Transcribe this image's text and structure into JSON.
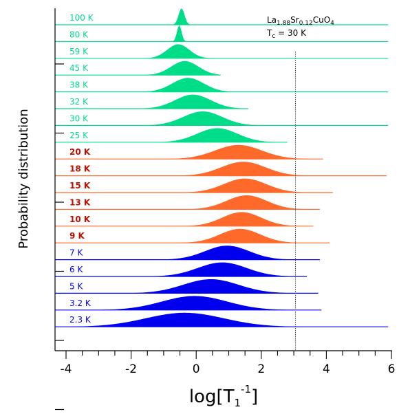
{
  "chart_data": {
    "type": "area",
    "title": "",
    "xlabel": "log[T₁⁻¹]",
    "xlabel_base": "log[T",
    "xlabel_sub": "1",
    "xlabel_sup": "-1",
    "xlabel_close": "]",
    "ylabel": "Probability distribution",
    "xlim": [
      -4.4,
      6.0
    ],
    "xticks": [
      -4,
      -2,
      0,
      2,
      4,
      6
    ],
    "xtick_labels": [
      "-4",
      "-2",
      "0",
      "2",
      "4",
      "6"
    ],
    "grid": false,
    "vline_x": 3.05,
    "annotation": {
      "formula": {
        "la": "La",
        "la_sub": "1.88",
        "sr": "Sr",
        "sr_sub": "0.12",
        "cu": "CuO",
        "cu_sub": "4"
      },
      "tc": {
        "t": "T",
        "t_sub": "c",
        "rest": " = 30 K"
      }
    },
    "colors": {
      "green": "#00dd88",
      "orange": "#ff6a2a",
      "blue": "#0000ee",
      "red_text": "#bb1100"
    },
    "series": [
      {
        "name": "100 K",
        "group": "green",
        "center": -0.45,
        "width": 0.09,
        "height": 1.0,
        "x_end": 5.9,
        "bold": false
      },
      {
        "name": "80 K",
        "group": "green",
        "center": -0.52,
        "width": 0.07,
        "height": 1.0,
        "x_end": 5.9,
        "bold": false
      },
      {
        "name": "59 K",
        "group": "green",
        "center": -0.55,
        "width": 0.34,
        "height": 0.85,
        "x_end": 5.9,
        "bold": false
      },
      {
        "name": "45 K",
        "group": "green",
        "center": -0.35,
        "width": 0.42,
        "height": 0.85,
        "x_end": 0.75,
        "bold": false
      },
      {
        "name": "38 K",
        "group": "green",
        "center": -0.25,
        "width": 0.48,
        "height": 0.85,
        "x_end": 5.9,
        "bold": false
      },
      {
        "name": "32 K",
        "group": "green",
        "center": -0.1,
        "width": 0.55,
        "height": 0.85,
        "x_end": 1.6,
        "bold": false
      },
      {
        "name": "30 K",
        "group": "green",
        "center": 0.2,
        "width": 0.6,
        "height": 0.85,
        "x_end": 5.9,
        "bold": false
      },
      {
        "name": "25 K",
        "group": "green",
        "center": 0.65,
        "width": 0.62,
        "height": 0.85,
        "x_end": 2.8,
        "bold": false
      },
      {
        "name": "20 K",
        "group": "orange",
        "center": 1.3,
        "width": 0.72,
        "height": 0.85,
        "x_end": 3.9,
        "bold": true
      },
      {
        "name": "18 K",
        "group": "orange",
        "center": 1.45,
        "width": 0.68,
        "height": 0.85,
        "x_end": 5.85,
        "bold": true
      },
      {
        "name": "15 K",
        "group": "orange",
        "center": 1.5,
        "width": 0.65,
        "height": 0.85,
        "x_end": 4.2,
        "bold": true
      },
      {
        "name": "13 K",
        "group": "orange",
        "center": 1.55,
        "width": 0.62,
        "height": 0.85,
        "x_end": 3.8,
        "bold": true
      },
      {
        "name": "10 K",
        "group": "orange",
        "center": 1.4,
        "width": 0.6,
        "height": 0.85,
        "x_end": 3.6,
        "bold": true
      },
      {
        "name": "9 K",
        "group": "orange",
        "center": 1.35,
        "width": 0.62,
        "height": 0.85,
        "x_end": 4.1,
        "bold": true
      },
      {
        "name": "7 K",
        "group": "blue",
        "center": 0.95,
        "width": 0.68,
        "height": 0.85,
        "x_end": 3.8,
        "bold": false
      },
      {
        "name": "6 K",
        "group": "blue",
        "center": 0.8,
        "width": 0.75,
        "height": 0.85,
        "x_end": 3.4,
        "bold": false
      },
      {
        "name": "5 K",
        "group": "blue",
        "center": 0.45,
        "width": 0.85,
        "height": 0.85,
        "x_end": 3.75,
        "bold": false
      },
      {
        "name": "3.2 K",
        "group": "blue",
        "center": -0.05,
        "width": 1.0,
        "height": 0.85,
        "x_end": 3.85,
        "bold": false
      },
      {
        "name": "2.3 K",
        "group": "blue",
        "center": -0.35,
        "width": 1.2,
        "height": 0.85,
        "x_end": 5.9,
        "bold": false
      }
    ]
  }
}
